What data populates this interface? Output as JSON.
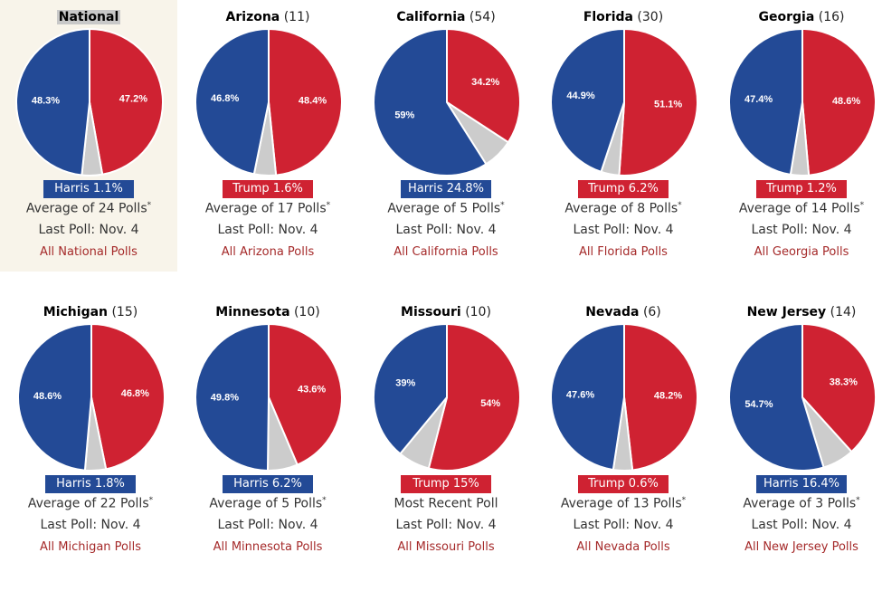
{
  "colors": {
    "harris": "#234a96",
    "trump": "#cf2232",
    "other": "#cccccc"
  },
  "chart_data": {
    "type": "pie",
    "charts": [
      {
        "name": "National",
        "ev": "",
        "trump": 47.2,
        "harris": 48.3,
        "lead": "Harris 1.1%",
        "leader": "harris",
        "polls": "Average of 24 Polls",
        "star": "*",
        "last": "Last Poll: Nov. 4",
        "link": "All National Polls",
        "highlight": true
      },
      {
        "name": "Arizona",
        "ev": "(11)",
        "trump": 48.4,
        "harris": 46.8,
        "lead": "Trump 1.6%",
        "leader": "trump",
        "polls": "Average of 17 Polls",
        "star": "*",
        "last": "Last Poll: Nov. 4",
        "link": "All Arizona Polls"
      },
      {
        "name": "California",
        "ev": "(54)",
        "trump": 34.2,
        "harris": 59,
        "lead": "Harris 24.8%",
        "leader": "harris",
        "polls": "Average of 5 Polls",
        "star": "*",
        "last": "Last Poll: Nov. 4",
        "link": "All California Polls"
      },
      {
        "name": "Florida",
        "ev": "(30)",
        "trump": 51.1,
        "harris": 44.9,
        "lead": "Trump 6.2%",
        "leader": "trump",
        "polls": "Average of 8 Polls",
        "star": "*",
        "last": "Last Poll: Nov. 4",
        "link": "All Florida Polls"
      },
      {
        "name": "Georgia",
        "ev": "(16)",
        "trump": 48.6,
        "harris": 47.4,
        "lead": "Trump 1.2%",
        "leader": "trump",
        "polls": "Average of 14 Polls",
        "star": "*",
        "last": "Last Poll: Nov. 4",
        "link": "All Georgia Polls"
      },
      {
        "name": "Michigan",
        "ev": "(15)",
        "trump": 46.8,
        "harris": 48.6,
        "lead": "Harris 1.8%",
        "leader": "harris",
        "polls": "Average of 22 Polls",
        "star": "*",
        "last": "Last Poll: Nov. 4",
        "link": "All Michigan Polls"
      },
      {
        "name": "Minnesota",
        "ev": "(10)",
        "trump": 43.6,
        "harris": 49.8,
        "lead": "Harris 6.2%",
        "leader": "harris",
        "polls": "Average of 5 Polls",
        "star": "*",
        "last": "Last Poll: Nov. 4",
        "link": "All Minnesota Polls"
      },
      {
        "name": "Missouri",
        "ev": "(10)",
        "trump": 54,
        "harris": 39,
        "lead": "Trump 15%",
        "leader": "trump",
        "polls": "Most Recent Poll",
        "star": "",
        "last": "Last Poll: Nov. 4",
        "link": "All Missouri Polls"
      },
      {
        "name": "Nevada",
        "ev": "(6)",
        "trump": 48.2,
        "harris": 47.6,
        "lead": "Trump 0.6%",
        "leader": "trump",
        "polls": "Average of 13 Polls",
        "star": "*",
        "last": "Last Poll: Nov. 4",
        "link": "All Nevada Polls"
      },
      {
        "name": "New Jersey",
        "ev": "(14)",
        "trump": 38.3,
        "harris": 54.7,
        "lead": "Harris 16.4%",
        "leader": "harris",
        "polls": "Average of 3 Polls",
        "star": "*",
        "last": "Last Poll: Nov. 4",
        "link": "All New Jersey Polls"
      }
    ]
  }
}
